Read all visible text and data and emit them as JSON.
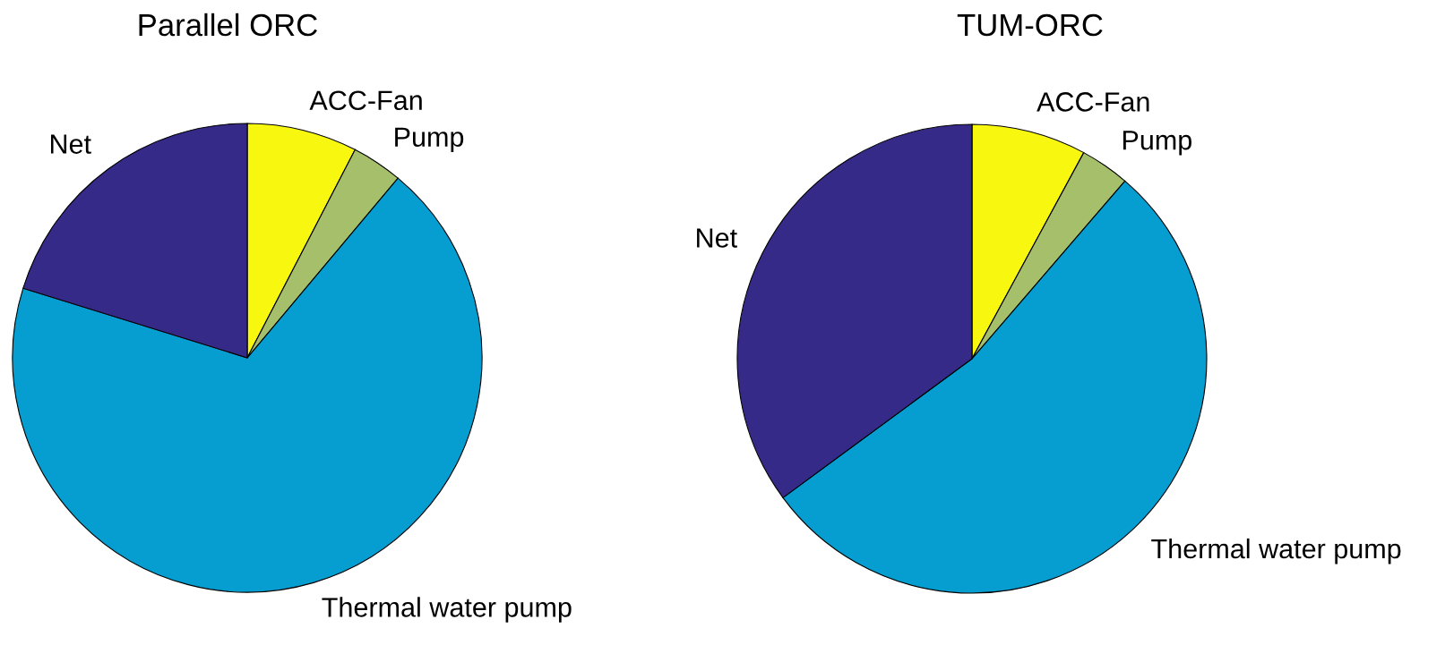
{
  "chart_data": [
    {
      "type": "pie",
      "title": "Parallel ORC",
      "categories": [
        "ACC-Fan",
        "Pump",
        "Thermal water pump",
        "Net"
      ],
      "values": [
        7.6,
        3.5,
        68.7,
        20.2
      ],
      "colors": [
        "#f7f70f",
        "#a5bf6b",
        "#069dd0",
        "#352a87"
      ]
    },
    {
      "type": "pie",
      "title": "TUM-ORC",
      "categories": [
        "ACC-Fan",
        "Pump",
        "Thermal water pump",
        "Net"
      ],
      "values": [
        7.9,
        3.4,
        53.6,
        35.1
      ],
      "colors": [
        "#f7f70f",
        "#a5bf6b",
        "#069dd0",
        "#352a87"
      ]
    }
  ]
}
